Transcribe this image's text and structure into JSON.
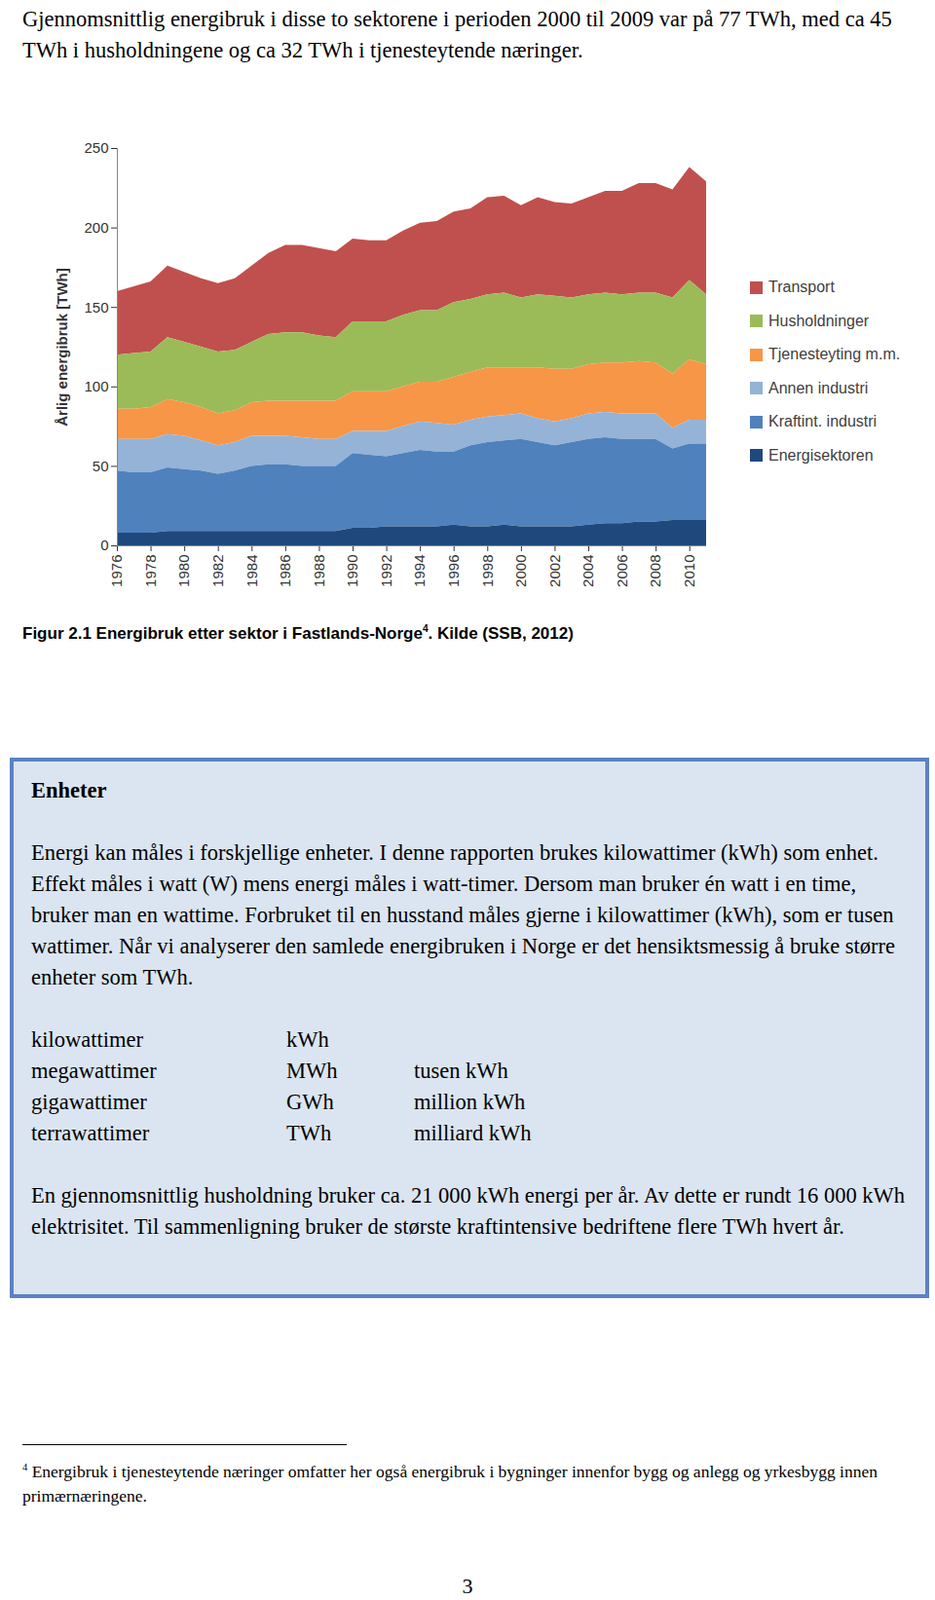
{
  "intro": "Gjennomsnittlig energibruk i disse to sektorene i perioden 2000 til 2009 var på 77 TWh, med ca 45 TWh i husholdningene og ca 32 TWh i tjenesteytende næringer.",
  "chart_data": {
    "type": "area",
    "stacked": true,
    "y_label": "Årlig energibruk [TWh]",
    "x": [
      1976,
      1977,
      1978,
      1979,
      1980,
      1981,
      1982,
      1983,
      1984,
      1985,
      1986,
      1987,
      1988,
      1989,
      1990,
      1991,
      1992,
      1993,
      1994,
      1995,
      1996,
      1997,
      1998,
      1999,
      2000,
      2001,
      2002,
      2003,
      2004,
      2005,
      2006,
      2007,
      2008,
      2009,
      2010,
      2011
    ],
    "xlim": [
      1976,
      2011
    ],
    "xticks": [
      1976,
      1978,
      1980,
      1982,
      1984,
      1986,
      1988,
      1990,
      1992,
      1994,
      1996,
      1998,
      2000,
      2002,
      2004,
      2006,
      2008,
      2010
    ],
    "ylim": [
      0,
      250
    ],
    "yticks": [
      0,
      50,
      100,
      150,
      200,
      250
    ],
    "grid": false,
    "legend": "right",
    "series": [
      {
        "name": "Transport",
        "color": "#c0504d",
        "values": [
          40,
          42,
          44,
          45,
          44,
          43,
          43,
          45,
          48,
          51,
          55,
          55,
          55,
          54,
          52,
          51,
          51,
          53,
          55,
          56,
          57,
          57,
          61,
          61,
          58,
          61,
          59,
          59,
          61,
          64,
          65,
          69,
          69,
          68,
          71,
          71
        ]
      },
      {
        "name": "Husholdninger",
        "color": "#9bbb59",
        "values": [
          34,
          35,
          35,
          39,
          38,
          38,
          39,
          38,
          38,
          42,
          43,
          43,
          41,
          40,
          44,
          44,
          44,
          45,
          45,
          45,
          47,
          46,
          46,
          47,
          44,
          46,
          46,
          45,
          44,
          44,
          43,
          43,
          44,
          48,
          50,
          44
        ]
      },
      {
        "name": "Tjenesteyting m.m.",
        "color": "#f79646",
        "values": [
          19,
          19,
          20,
          22,
          21,
          21,
          20,
          20,
          21,
          22,
          22,
          23,
          24,
          24,
          25,
          25,
          25,
          25,
          25,
          26,
          30,
          30,
          31,
          30,
          29,
          32,
          33,
          31,
          31,
          31,
          32,
          33,
          32,
          34,
          38,
          35
        ]
      },
      {
        "name": "Annen industri",
        "color": "#95b3d7",
        "values": [
          20,
          21,
          21,
          21,
          21,
          19,
          18,
          18,
          19,
          18,
          18,
          18,
          17,
          17,
          14,
          15,
          16,
          17,
          18,
          18,
          17,
          16,
          16,
          16,
          16,
          15,
          15,
          15,
          16,
          16,
          16,
          16,
          16,
          13,
          15,
          15
        ]
      },
      {
        "name": "Kraftint. industri",
        "color": "#4f81bd",
        "values": [
          39,
          38,
          38,
          40,
          39,
          38,
          36,
          38,
          41,
          42,
          42,
          41,
          41,
          41,
          47,
          46,
          44,
          46,
          48,
          47,
          46,
          51,
          53,
          53,
          55,
          53,
          51,
          53,
          54,
          54,
          53,
          52,
          52,
          45,
          48,
          48
        ]
      },
      {
        "name": "Energisektoren",
        "color": "#1f497d",
        "values": [
          8,
          8,
          8,
          9,
          9,
          9,
          9,
          9,
          9,
          9,
          9,
          9,
          9,
          9,
          11,
          11,
          12,
          12,
          12,
          12,
          13,
          12,
          12,
          13,
          12,
          12,
          12,
          12,
          13,
          14,
          14,
          15,
          15,
          16,
          16,
          16
        ]
      }
    ]
  },
  "caption": {
    "text": "Figur 2.1 Energibruk etter sektor i Fastlands-Norge",
    "footnote_ref": "4",
    "source": ". Kilde (SSB, 2012)"
  },
  "box": {
    "title": "Enheter",
    "paragraph": "Energi kan måles i forskjellige enheter. I denne rapporten brukes kilowattimer (kWh) som enhet. Effekt måles i watt (W) mens energi måles i watt-timer. Dersom man bruker én watt i en time, bruker man en wattime. Forbruket til en husstand måles gjerne i kilowattimer (kWh), som er tusen wattimer. Når vi analyserer den samlede energibruken i Norge er det hensiktsmessig å bruke større enheter som TWh.",
    "units": [
      [
        "kilowattimer",
        "kWh"
      ],
      [
        "megawattimer",
        "MWh",
        "tusen kWh"
      ],
      [
        "gigawattimer",
        "GWh",
        "million kWh"
      ],
      [
        "terrawattimer",
        "TWh",
        "milliard kWh"
      ]
    ],
    "closing": "En gjennomsnittlig husholdning bruker ca. 21 000 kWh energi per år. Av dette er rundt 16 000 kWh elektrisitet. Til sammenligning bruker de største kraftintensive bedriftene flere TWh hvert år."
  },
  "footnote": {
    "marker": "4",
    "text": "Energibruk i tjenesteytende næringer omfatter her også energibruk i bygninger innenfor bygg og anlegg og yrkesbygg innen primærnæringene."
  },
  "page_number": "3"
}
